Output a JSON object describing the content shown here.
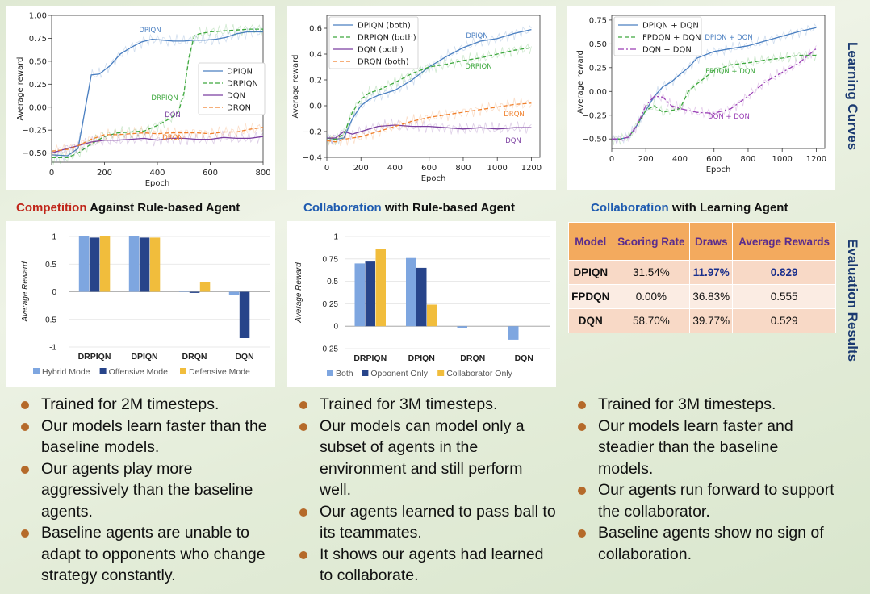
{
  "side_labels": {
    "learning": "Learning Curves",
    "evaluation": "Evaluation Results"
  },
  "titles": {
    "competition": {
      "highlight": "Competition",
      "rest": " Against Rule-based Agent"
    },
    "collab_rule": {
      "highlight": "Collaboration",
      "rest": " with Rule-based Agent"
    },
    "collab_learning": {
      "highlight": "Collaboration",
      "rest": " with Learning Agent"
    }
  },
  "colors": {
    "blue": "#4a7fc1",
    "green": "#3ea83e",
    "purple": "#7b3fa0",
    "orange": "#f07f2a",
    "bar_light": "#7ea6e0",
    "bar_dark": "#27448a",
    "bar_yellow": "#f1bd3c",
    "magenta": "#9a3fb5"
  },
  "table": {
    "headers": [
      "Model",
      "Scoring Rate",
      "Draws",
      "Average Rewards"
    ],
    "rows": [
      [
        "DPIQN",
        "31.54%",
        "11.97%",
        "0.829"
      ],
      [
        "FPDQN",
        "0.00%",
        "36.83%",
        "0.555"
      ],
      [
        "DQN",
        "58.70%",
        "39.77%",
        "0.529"
      ]
    ]
  },
  "bullets": {
    "col1": [
      "Trained for 2M timesteps.",
      "Our models learn faster than the baseline models.",
      "Our agents play more aggressively than the baseline agents.",
      "Baseline agents are unable to adapt to opponents who change strategy constantly."
    ],
    "col2": [
      "Trained for 3M timesteps.",
      "Our models can model only a subset of agents in the environment and still perform well.",
      "Our agents learned to pass ball to its teammates.",
      "It shows our agents had learned to collaborate."
    ],
    "col3": [
      "Trained for 3M timesteps.",
      "Our models learn faster and steadier than the baseline models.",
      "Our agents run forward to support the collaborator.",
      "Baseline agents show no sign of collaboration."
    ]
  },
  "chart_data": [
    {
      "type": "line",
      "xlabel": "Epoch",
      "ylabel": "Average reward",
      "xlim": [
        0,
        800
      ],
      "ylim": [
        -0.6,
        1.0
      ],
      "xticks": [
        "0",
        "200",
        "400",
        "600",
        "800"
      ],
      "yticks": [
        "−0.50",
        "−0.25",
        "0.00",
        "0.25",
        "0.50",
        "0.75",
        "1.00"
      ],
      "legend_position": "right",
      "series": [
        {
          "name": "DPIQN",
          "label": "DPIQN",
          "color": "#4a7fc1",
          "dash": "solid",
          "x": [
            0,
            60,
            100,
            150,
            180,
            220,
            260,
            300,
            340,
            380,
            420,
            460,
            500,
            540,
            580,
            620,
            660,
            700,
            740,
            780,
            800
          ],
          "y": [
            -0.52,
            -0.53,
            -0.45,
            0.35,
            0.36,
            0.45,
            0.58,
            0.65,
            0.71,
            0.74,
            0.73,
            0.72,
            0.72,
            0.73,
            0.73,
            0.74,
            0.76,
            0.8,
            0.82,
            0.82,
            0.82
          ]
        },
        {
          "name": "DRPIQN",
          "label": "DRPIQN",
          "color": "#3ea83e",
          "dash": "dashed",
          "x": [
            0,
            60,
            100,
            150,
            200,
            250,
            300,
            350,
            400,
            450,
            480,
            500,
            520,
            540,
            560,
            600,
            650,
            700,
            750,
            800
          ],
          "y": [
            -0.55,
            -0.55,
            -0.5,
            -0.4,
            -0.32,
            -0.28,
            -0.27,
            -0.26,
            -0.2,
            -0.12,
            -0.05,
            0.15,
            0.55,
            0.78,
            0.8,
            0.82,
            0.83,
            0.84,
            0.85,
            0.85
          ]
        },
        {
          "name": "DQN",
          "label": "DQN",
          "color": "#7b3fa0",
          "dash": "solid",
          "x": [
            0,
            60,
            100,
            150,
            200,
            250,
            300,
            350,
            400,
            450,
            500,
            550,
            600,
            650,
            700,
            750,
            800
          ],
          "y": [
            -0.5,
            -0.45,
            -0.42,
            -0.38,
            -0.36,
            -0.36,
            -0.35,
            -0.34,
            -0.36,
            -0.34,
            -0.34,
            -0.35,
            -0.35,
            -0.33,
            -0.34,
            -0.34,
            -0.32
          ]
        },
        {
          "name": "DRQN",
          "label": "DRQN",
          "color": "#f07f2a",
          "dash": "dashed",
          "x": [
            0,
            60,
            100,
            150,
            200,
            250,
            300,
            350,
            400,
            450,
            500,
            550,
            600,
            650,
            700,
            750,
            800
          ],
          "y": [
            -0.48,
            -0.46,
            -0.42,
            -0.35,
            -0.3,
            -0.3,
            -0.29,
            -0.28,
            -0.29,
            -0.28,
            -0.28,
            -0.28,
            -0.29,
            -0.27,
            -0.27,
            -0.24,
            -0.22
          ]
        }
      ]
    },
    {
      "type": "line",
      "xlabel": "Epoch",
      "ylabel": "Average reward",
      "xlim": [
        0,
        1250
      ],
      "ylim": [
        -0.4,
        0.7
      ],
      "xticks": [
        "0",
        "200",
        "400",
        "600",
        "800",
        "1000",
        "1200"
      ],
      "yticks": [
        "−0.4",
        "−0.2",
        "0.0",
        "0.2",
        "0.4",
        "0.6"
      ],
      "legend_position": "top-left",
      "series": [
        {
          "name": "DPIQN (both)",
          "label": "DPIQN",
          "color": "#4a7fc1",
          "dash": "solid",
          "x": [
            0,
            50,
            100,
            150,
            200,
            250,
            300,
            400,
            500,
            600,
            700,
            800,
            900,
            1000,
            1100,
            1200
          ],
          "y": [
            -0.25,
            -0.26,
            -0.25,
            -0.1,
            0.0,
            0.05,
            0.08,
            0.12,
            0.2,
            0.3,
            0.38,
            0.45,
            0.5,
            0.52,
            0.56,
            0.59
          ]
        },
        {
          "name": "DRPIQN (both)",
          "label": "DRPIQN",
          "color": "#3ea83e",
          "dash": "dashed",
          "x": [
            0,
            50,
            100,
            150,
            200,
            250,
            300,
            400,
            500,
            600,
            700,
            800,
            900,
            1000,
            1100,
            1200
          ],
          "y": [
            -0.25,
            -0.26,
            -0.22,
            -0.05,
            0.05,
            0.1,
            0.12,
            0.18,
            0.25,
            0.3,
            0.32,
            0.35,
            0.37,
            0.4,
            0.43,
            0.45
          ]
        },
        {
          "name": "DQN (both)",
          "label": "DQN",
          "color": "#7b3fa0",
          "dash": "solid",
          "x": [
            0,
            50,
            100,
            150,
            200,
            250,
            300,
            400,
            500,
            600,
            700,
            800,
            900,
            1000,
            1100,
            1200
          ],
          "y": [
            -0.25,
            -0.25,
            -0.2,
            -0.22,
            -0.2,
            -0.18,
            -0.16,
            -0.15,
            -0.16,
            -0.16,
            -0.17,
            -0.18,
            -0.17,
            -0.18,
            -0.17,
            -0.17
          ]
        },
        {
          "name": "DRQN (both)",
          "label": "DRQN",
          "color": "#f07f2a",
          "dash": "dashed",
          "x": [
            0,
            50,
            100,
            150,
            200,
            250,
            300,
            400,
            500,
            600,
            700,
            800,
            900,
            1000,
            1100,
            1200
          ],
          "y": [
            -0.27,
            -0.28,
            -0.26,
            -0.25,
            -0.24,
            -0.22,
            -0.2,
            -0.16,
            -0.12,
            -0.09,
            -0.07,
            -0.05,
            -0.03,
            -0.01,
            0.01,
            0.02
          ]
        }
      ]
    },
    {
      "type": "line",
      "xlabel": "Epoch",
      "ylabel": "Average reward",
      "xlim": [
        0,
        1250
      ],
      "ylim": [
        -0.6,
        0.8
      ],
      "xticks": [
        "0",
        "200",
        "400",
        "600",
        "800",
        "1000",
        "1200"
      ],
      "yticks": [
        "−0.50",
        "−0.25",
        "0.00",
        "0.25",
        "0.50",
        "0.75"
      ],
      "legend_position": "top-left",
      "series": [
        {
          "name": "DPIQN + DQN",
          "label": "DPIQN + DQN",
          "color": "#4a7fc1",
          "dash": "solid",
          "x": [
            0,
            50,
            100,
            150,
            200,
            250,
            300,
            350,
            400,
            450,
            500,
            600,
            700,
            800,
            900,
            1000,
            1100,
            1200
          ],
          "y": [
            -0.5,
            -0.5,
            -0.48,
            -0.35,
            -0.2,
            -0.05,
            0.05,
            0.1,
            0.18,
            0.25,
            0.35,
            0.42,
            0.45,
            0.48,
            0.53,
            0.58,
            0.63,
            0.67
          ]
        },
        {
          "name": "FPDQN + DQN",
          "label": "FPDQN + DQN",
          "color": "#3ea83e",
          "dash": "dashed",
          "x": [
            0,
            50,
            100,
            150,
            200,
            250,
            300,
            350,
            400,
            450,
            500,
            600,
            700,
            800,
            900,
            1000,
            1100,
            1200
          ],
          "y": [
            -0.5,
            -0.5,
            -0.48,
            -0.35,
            -0.2,
            -0.15,
            -0.22,
            -0.2,
            -0.18,
            0.0,
            0.08,
            0.22,
            0.28,
            0.3,
            0.33,
            0.35,
            0.38,
            0.38
          ]
        },
        {
          "name": "DQN + DQN",
          "label": "DQN + DQN",
          "color": "#9a3fb5",
          "dash": "dashdot",
          "x": [
            0,
            50,
            100,
            150,
            200,
            250,
            300,
            350,
            400,
            450,
            500,
            600,
            700,
            800,
            900,
            1000,
            1100,
            1200
          ],
          "y": [
            -0.5,
            -0.5,
            -0.48,
            -0.35,
            -0.15,
            -0.05,
            -0.06,
            -0.15,
            -0.18,
            -0.2,
            -0.22,
            -0.23,
            -0.18,
            -0.05,
            0.1,
            0.2,
            0.3,
            0.45
          ]
        }
      ]
    },
    {
      "type": "bar",
      "ylabel": "Average Reward",
      "categories": [
        "DRPIQN",
        "DPIQN",
        "DRQN",
        "DQN"
      ],
      "ylim": [
        -1,
        1
      ],
      "yticks": [
        "-1",
        "-0.5",
        "0",
        "0.5",
        "1"
      ],
      "legend_position": "bottom",
      "series": [
        {
          "name": "Hybrid Mode",
          "color": "#7ea6e0",
          "values": [
            1.0,
            1.0,
            0.02,
            -0.06
          ]
        },
        {
          "name": "Offensive Mode",
          "color": "#27448a",
          "values": [
            0.98,
            0.98,
            -0.02,
            -0.84
          ]
        },
        {
          "name": "Defensive Mode",
          "color": "#f1bd3c",
          "values": [
            1.0,
            0.98,
            0.17,
            0.0
          ]
        }
      ]
    },
    {
      "type": "bar",
      "ylabel": "Average Reward",
      "categories": [
        "DRPIQN",
        "DPIQN",
        "DRQN",
        "DQN"
      ],
      "ylim": [
        -0.25,
        1
      ],
      "yticks": [
        "-0.25",
        "0",
        "0.25",
        "0.5",
        "0.75",
        "1"
      ],
      "legend_position": "bottom",
      "series": [
        {
          "name": "Both",
          "color": "#7ea6e0",
          "values": [
            0.7,
            0.76,
            -0.02,
            -0.15
          ]
        },
        {
          "name": "Opoonent Only",
          "color": "#27448a",
          "values": [
            0.72,
            0.65,
            0.0,
            0.0
          ]
        },
        {
          "name": "Collaborator Only",
          "color": "#f1bd3c",
          "values": [
            0.86,
            0.24,
            0.0,
            0.0
          ]
        }
      ]
    }
  ]
}
